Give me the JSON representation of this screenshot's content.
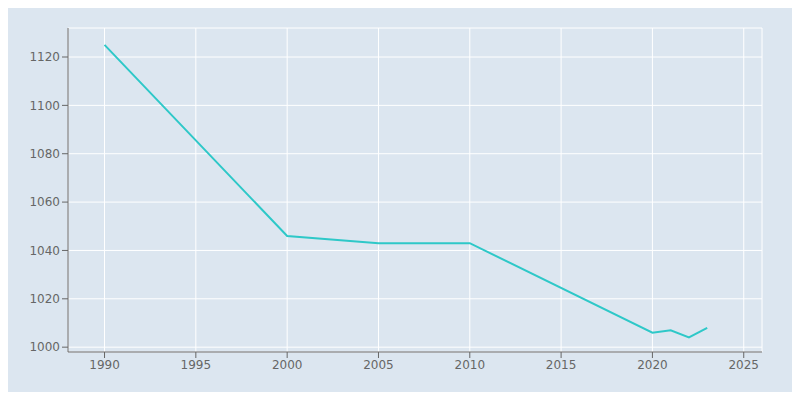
{
  "chart_data": {
    "type": "line",
    "x": [
      1990,
      2000,
      2005,
      2010,
      2020,
      2021,
      2022,
      2023
    ],
    "values": [
      1125,
      1046,
      1043,
      1043,
      1006,
      1007,
      1004,
      1008
    ],
    "color": "#2ec8c8",
    "xlim": [
      1988,
      2026
    ],
    "ylim": [
      998,
      1132
    ],
    "xticks": [
      1990,
      1995,
      2000,
      2005,
      2010,
      2015,
      2020,
      2025
    ],
    "yticks": [
      1000,
      1020,
      1040,
      1060,
      1080,
      1100,
      1120
    ],
    "grid": true
  }
}
